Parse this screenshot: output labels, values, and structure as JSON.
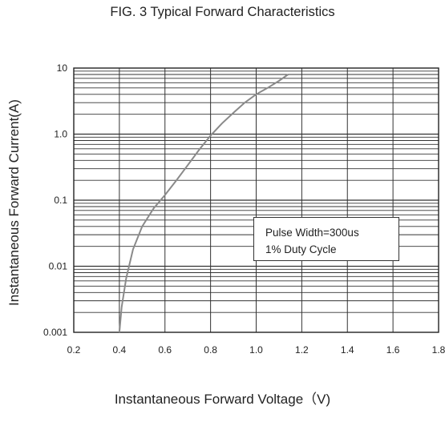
{
  "chart_data": {
    "type": "line",
    "title": "FIG. 3 Typical Forward Characteristics",
    "xlabel": "Instantaneous Forward Voltage（V)",
    "ylabel": "Instantaneous Forward Current(A)",
    "xscale": "linear",
    "yscale": "log",
    "xlim": [
      0.2,
      1.8
    ],
    "ylim": [
      0.001,
      10
    ],
    "x_ticks": [
      "0.2",
      "0.4",
      "0.6",
      "0.8",
      "1.0",
      "1.2",
      "1.4",
      "1.6",
      "1.8"
    ],
    "y_ticks": [
      "0.001",
      "0.01",
      "0.1",
      "1.0",
      "10"
    ],
    "grid": true,
    "annotation": [
      "Pulse Width=300us",
      "1% Duty Cycle"
    ],
    "series": [
      {
        "x": [
          0.4,
          0.41,
          0.43,
          0.46,
          0.5,
          0.55,
          0.6,
          0.65,
          0.7,
          0.75,
          0.8,
          0.85,
          0.9,
          0.95,
          1.0,
          1.05,
          1.1,
          1.14
        ],
        "y": [
          0.001,
          0.0024,
          0.0066,
          0.018,
          0.04,
          0.075,
          0.12,
          0.2,
          0.34,
          0.58,
          0.95,
          1.45,
          2.1,
          3.0,
          4.0,
          5.0,
          6.4,
          8.0
        ]
      }
    ]
  }
}
